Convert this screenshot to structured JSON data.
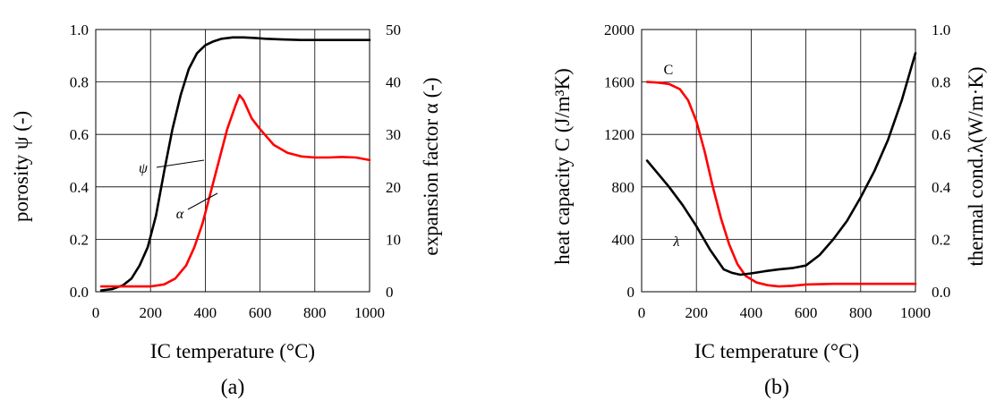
{
  "chart_data": [
    {
      "type": "line",
      "panel_label": "(a)",
      "xlabel": "IC temperature (°C)",
      "ylabel": "porosity ψ (-)",
      "y2label": "expansion factor α (-)",
      "xlim": [
        0,
        1000
      ],
      "ylim": [
        0,
        1.0
      ],
      "y2lim": [
        0,
        50
      ],
      "xticks": [
        "0",
        "200",
        "400",
        "600",
        "800",
        "1000"
      ],
      "yticks": [
        "0.0",
        "0.2",
        "0.4",
        "0.6",
        "0.8",
        "1.0"
      ],
      "y2ticks": [
        "0",
        "10",
        "20",
        "30",
        "40",
        "50"
      ],
      "grid": true,
      "series": [
        {
          "name": "ψ",
          "axis": "left",
          "color": "#000000",
          "x": [
            20,
            60,
            100,
            130,
            160,
            190,
            220,
            250,
            280,
            310,
            340,
            370,
            400,
            430,
            460,
            500,
            540,
            580,
            620,
            680,
            750,
            800,
            900,
            1000
          ],
          "y": [
            0.005,
            0.01,
            0.025,
            0.05,
            0.1,
            0.17,
            0.29,
            0.46,
            0.62,
            0.75,
            0.85,
            0.91,
            0.94,
            0.955,
            0.965,
            0.97,
            0.97,
            0.968,
            0.965,
            0.962,
            0.96,
            0.96,
            0.96,
            0.96
          ]
        },
        {
          "name": "α",
          "axis": "right",
          "color": "#ff0000",
          "x": [
            20,
            100,
            200,
            250,
            290,
            330,
            360,
            390,
            420,
            450,
            480,
            510,
            525,
            540,
            570,
            600,
            650,
            700,
            750,
            800,
            850,
            900,
            950,
            1000
          ],
          "y": [
            1,
            1,
            1,
            1.4,
            2.5,
            5,
            8.5,
            13,
            19,
            25,
            31,
            35.5,
            37.5,
            36.5,
            33,
            31,
            28,
            26.5,
            25.8,
            25.6,
            25.6,
            25.7,
            25.6,
            25.1
          ]
        }
      ]
    },
    {
      "type": "line",
      "panel_label": "(b)",
      "xlabel": "IC temperature (°C)",
      "ylabel": "heat capacity C (J/m³K)",
      "y2label": "thermal cond.λ(W/m·K)",
      "xlim": [
        0,
        1000
      ],
      "ylim": [
        0,
        2000
      ],
      "y2lim": [
        0,
        1.0
      ],
      "xticks": [
        "0",
        "200",
        "400",
        "600",
        "800",
        "1000"
      ],
      "yticks": [
        "0",
        "400",
        "800",
        "1200",
        "1600",
        "2000"
      ],
      "y2ticks": [
        "0.0",
        "0.2",
        "0.4",
        "0.6",
        "0.8",
        "1.0"
      ],
      "grid": true,
      "series": [
        {
          "name": "C",
          "axis": "left",
          "color": "#ff0000",
          "x": [
            20,
            60,
            100,
            140,
            170,
            200,
            230,
            260,
            290,
            320,
            350,
            380,
            420,
            460,
            500,
            550,
            600,
            700,
            800,
            900,
            1000
          ],
          "y": [
            1600,
            1595,
            1585,
            1545,
            1460,
            1300,
            1070,
            800,
            560,
            360,
            210,
            120,
            70,
            50,
            40,
            45,
            55,
            60,
            60,
            60,
            60
          ]
        },
        {
          "name": "λ",
          "axis": "right",
          "color": "#000000",
          "x": [
            20,
            60,
            100,
            150,
            200,
            250,
            300,
            330,
            360,
            400,
            450,
            500,
            550,
            600,
            650,
            700,
            750,
            800,
            850,
            900,
            950,
            1000
          ],
          "y": [
            0.5,
            0.45,
            0.4,
            0.33,
            0.25,
            0.16,
            0.085,
            0.072,
            0.065,
            0.07,
            0.078,
            0.085,
            0.09,
            0.1,
            0.14,
            0.2,
            0.27,
            0.36,
            0.46,
            0.58,
            0.73,
            0.91
          ]
        }
      ],
      "curve_labels": {
        "C": "C",
        "λ": "λ"
      }
    }
  ]
}
